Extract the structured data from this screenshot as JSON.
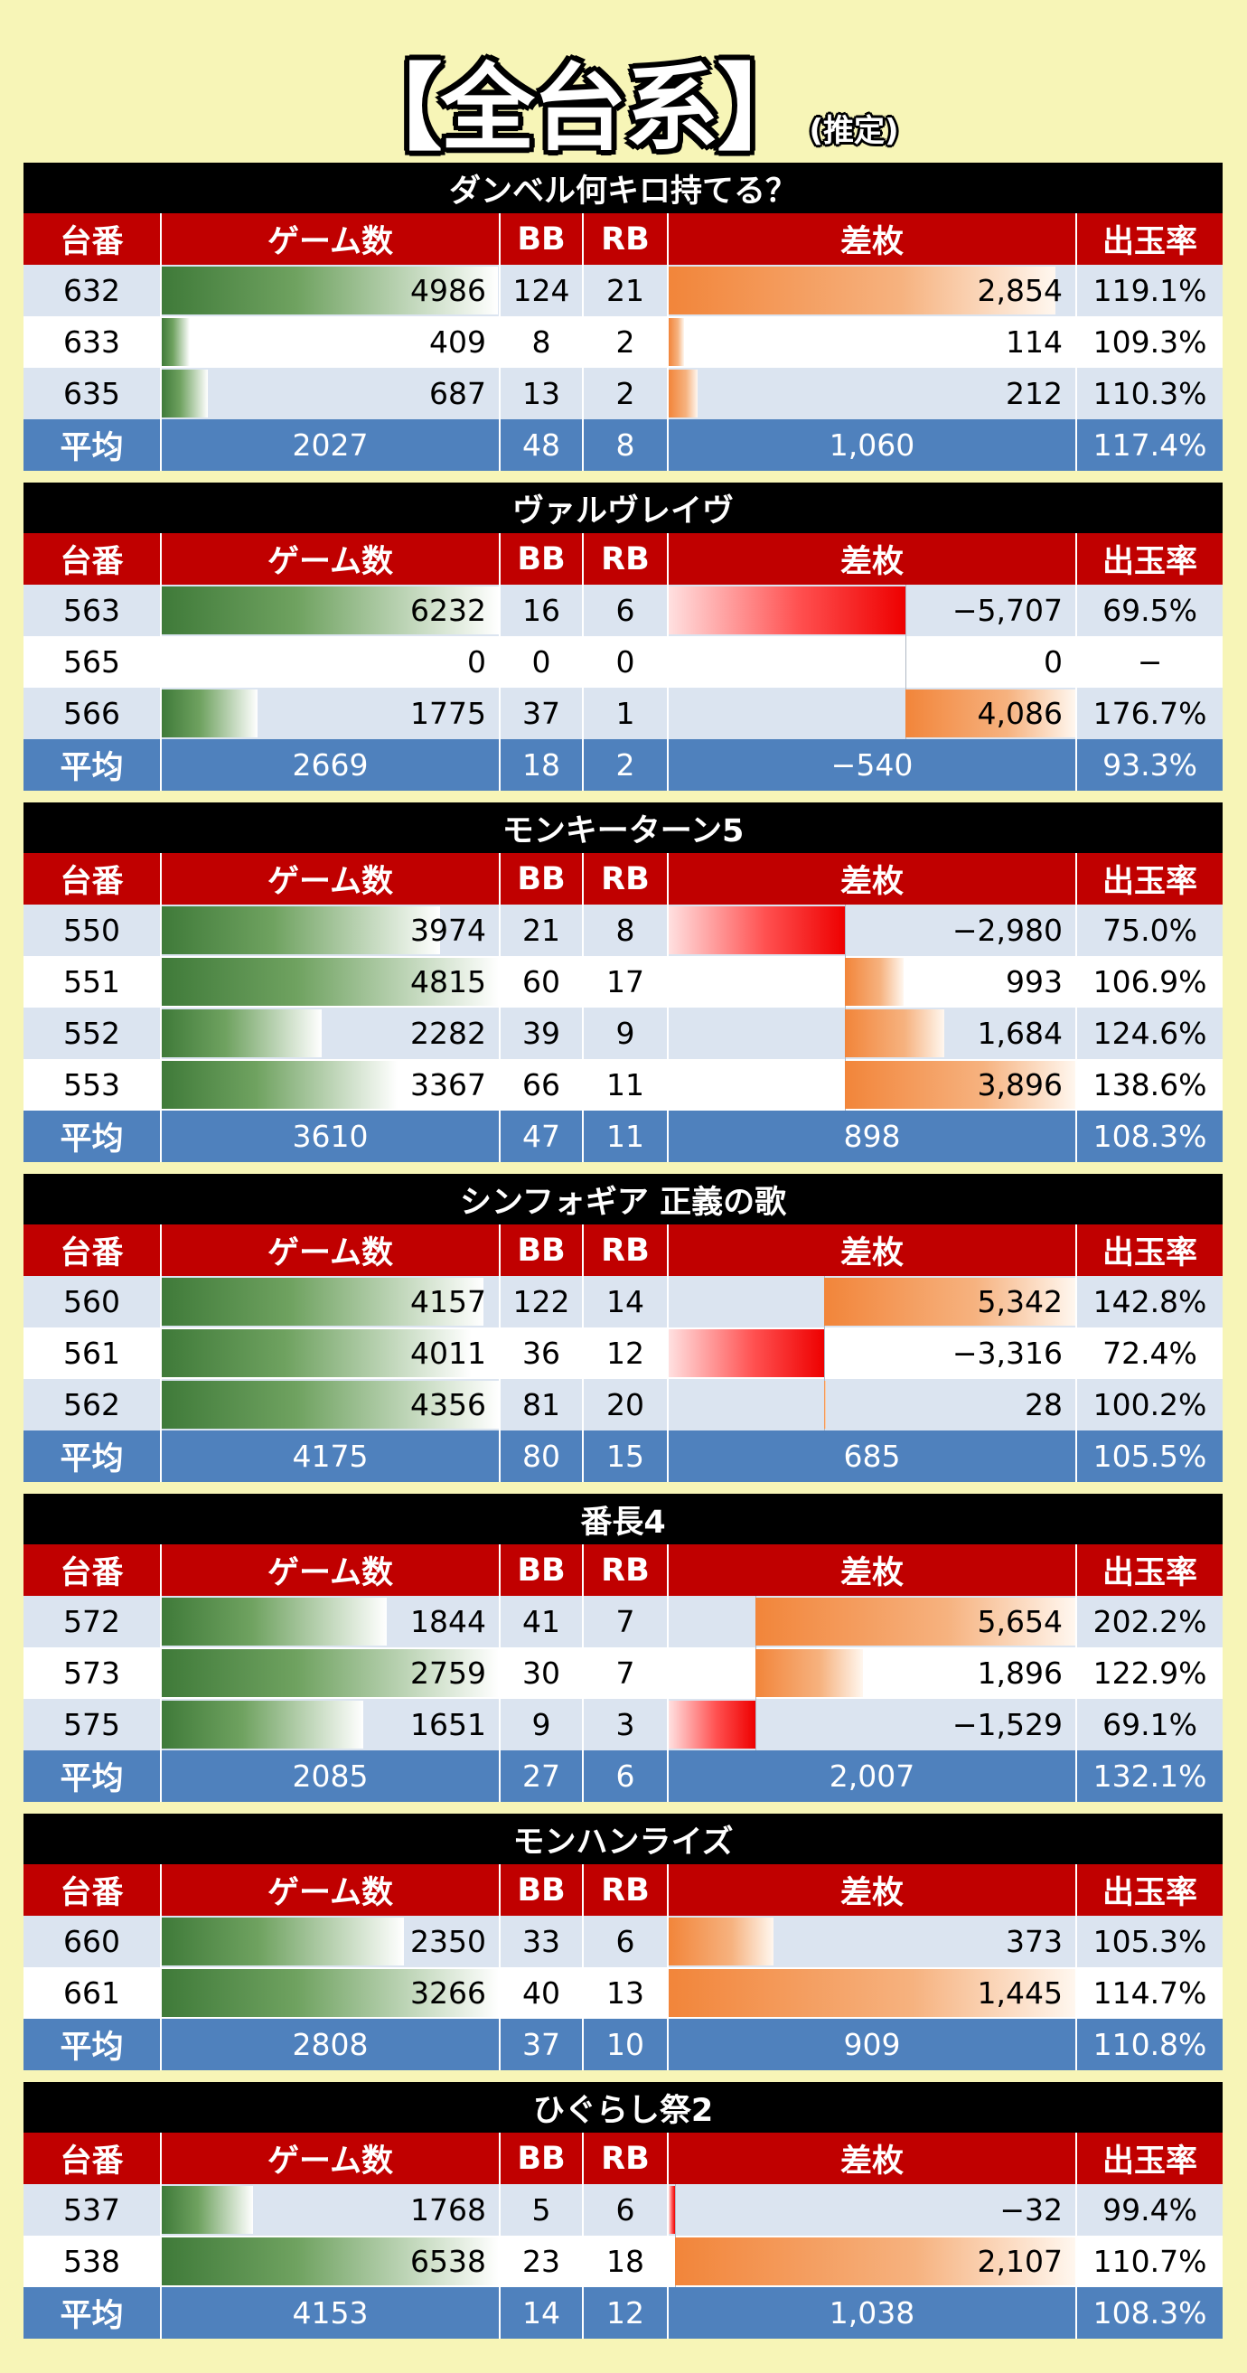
{
  "title": {
    "main": "【全台系】",
    "sub": "(推定)"
  },
  "headers": {
    "no": "台番",
    "games": "ゲーム数",
    "bb": "BB",
    "rb": "RB",
    "diff": "差枚",
    "rate": "出玉率",
    "avg": "平均"
  },
  "colors": {
    "machine_bg": "#000000",
    "header_bg": "#c00000",
    "avg_bg": "#4f81bd",
    "row_alt": "#dbe4f0",
    "games_bar": "#3f7a39",
    "diff_pos": "#f2853a",
    "diff_neg": "#ee0000"
  },
  "sections": [
    {
      "machine": "ダンベル何キロ持てる？",
      "games_max": 5000,
      "diff_min": 0,
      "diff_max": 3000,
      "rows": [
        {
          "no": "632",
          "games": "4986",
          "games_v": 4986,
          "bb": "124",
          "rb": "21",
          "diff": "2,854",
          "diff_v": 2854,
          "rate": "119.1%"
        },
        {
          "no": "633",
          "games": "409",
          "games_v": 409,
          "bb": "8",
          "rb": "2",
          "diff": "114",
          "diff_v": 114,
          "rate": "109.3%"
        },
        {
          "no": "635",
          "games": "687",
          "games_v": 687,
          "bb": "13",
          "rb": "2",
          "diff": "212",
          "diff_v": 212,
          "rate": "110.3%"
        }
      ],
      "avg": {
        "games": "2027",
        "bb": "48",
        "rb": "8",
        "diff": "1,060",
        "rate": "117.4%"
      }
    },
    {
      "machine": "ヴァルヴレイヴ",
      "games_max": 6232,
      "diff_min": -5707,
      "diff_max": 4086,
      "rows": [
        {
          "no": "563",
          "games": "6232",
          "games_v": 6232,
          "bb": "16",
          "rb": "6",
          "diff": "−5,707",
          "diff_v": -5707,
          "rate": "69.5%"
        },
        {
          "no": "565",
          "games": "0",
          "games_v": 0,
          "bb": "0",
          "rb": "0",
          "diff": "0",
          "diff_v": 0,
          "rate": "−"
        },
        {
          "no": "566",
          "games": "1775",
          "games_v": 1775,
          "bb": "37",
          "rb": "1",
          "diff": "4,086",
          "diff_v": 4086,
          "rate": "176.7%"
        }
      ],
      "avg": {
        "games": "2669",
        "bb": "18",
        "rb": "2",
        "diff": "−540",
        "rate": "93.3%"
      }
    },
    {
      "machine": "モンキーターン5",
      "games_max": 4815,
      "diff_min": -2980,
      "diff_max": 3896,
      "rows": [
        {
          "no": "550",
          "games": "3974",
          "games_v": 3974,
          "bb": "21",
          "rb": "8",
          "diff": "−2,980",
          "diff_v": -2980,
          "rate": "75.0%"
        },
        {
          "no": "551",
          "games": "4815",
          "games_v": 4815,
          "bb": "60",
          "rb": "17",
          "diff": "993",
          "diff_v": 993,
          "rate": "106.9%"
        },
        {
          "no": "552",
          "games": "2282",
          "games_v": 2282,
          "bb": "39",
          "rb": "9",
          "diff": "1,684",
          "diff_v": 1684,
          "rate": "124.6%"
        },
        {
          "no": "553",
          "games": "3367",
          "games_v": 3367,
          "bb": "66",
          "rb": "11",
          "diff": "3,896",
          "diff_v": 3896,
          "rate": "138.6%"
        }
      ],
      "avg": {
        "games": "3610",
        "bb": "47",
        "rb": "11",
        "diff": "898",
        "rate": "108.3%"
      }
    },
    {
      "machine": "シンフォギア 正義の歌",
      "games_max": 4356,
      "diff_min": -3316,
      "diff_max": 5342,
      "rows": [
        {
          "no": "560",
          "games": "4157",
          "games_v": 4157,
          "bb": "122",
          "rb": "14",
          "diff": "5,342",
          "diff_v": 5342,
          "rate": "142.8%"
        },
        {
          "no": "561",
          "games": "4011",
          "games_v": 4011,
          "bb": "36",
          "rb": "12",
          "diff": "−3,316",
          "diff_v": -3316,
          "rate": "72.4%"
        },
        {
          "no": "562",
          "games": "4356",
          "games_v": 4356,
          "bb": "81",
          "rb": "20",
          "diff": "28",
          "diff_v": 28,
          "rate": "100.2%"
        }
      ],
      "avg": {
        "games": "4175",
        "bb": "80",
        "rb": "15",
        "diff": "685",
        "rate": "105.5%"
      }
    },
    {
      "machine": "番長4",
      "games_max": 2759,
      "diff_min": -1529,
      "diff_max": 5654,
      "rows": [
        {
          "no": "572",
          "games": "1844",
          "games_v": 1844,
          "bb": "41",
          "rb": "7",
          "diff": "5,654",
          "diff_v": 5654,
          "rate": "202.2%"
        },
        {
          "no": "573",
          "games": "2759",
          "games_v": 2759,
          "bb": "30",
          "rb": "7",
          "diff": "1,896",
          "diff_v": 1896,
          "rate": "122.9%"
        },
        {
          "no": "575",
          "games": "1651",
          "games_v": 1651,
          "bb": "9",
          "rb": "3",
          "diff": "−1,529",
          "diff_v": -1529,
          "rate": "69.1%"
        }
      ],
      "avg": {
        "games": "2085",
        "bb": "27",
        "rb": "6",
        "diff": "2,007",
        "rate": "132.1%"
      }
    },
    {
      "machine": "モンハンライズ",
      "games_max": 3266,
      "diff_min": 0,
      "diff_max": 1445,
      "rows": [
        {
          "no": "660",
          "games": "2350",
          "games_v": 2350,
          "bb": "33",
          "rb": "6",
          "diff": "373",
          "diff_v": 373,
          "rate": "105.3%"
        },
        {
          "no": "661",
          "games": "3266",
          "games_v": 3266,
          "bb": "40",
          "rb": "13",
          "diff": "1,445",
          "diff_v": 1445,
          "rate": "114.7%"
        }
      ],
      "avg": {
        "games": "2808",
        "bb": "37",
        "rb": "10",
        "diff": "909",
        "rate": "110.8%"
      }
    },
    {
      "machine": "ひぐらし祭2",
      "games_max": 6538,
      "diff_min": -32,
      "diff_max": 2107,
      "rows": [
        {
          "no": "537",
          "games": "1768",
          "games_v": 1768,
          "bb": "5",
          "rb": "6",
          "diff": "−32",
          "diff_v": -32,
          "rate": "99.4%"
        },
        {
          "no": "538",
          "games": "6538",
          "games_v": 6538,
          "bb": "23",
          "rb": "18",
          "diff": "2,107",
          "diff_v": 2107,
          "rate": "110.7%"
        }
      ],
      "avg": {
        "games": "4153",
        "bb": "14",
        "rb": "12",
        "diff": "1,038",
        "rate": "108.3%"
      }
    }
  ]
}
